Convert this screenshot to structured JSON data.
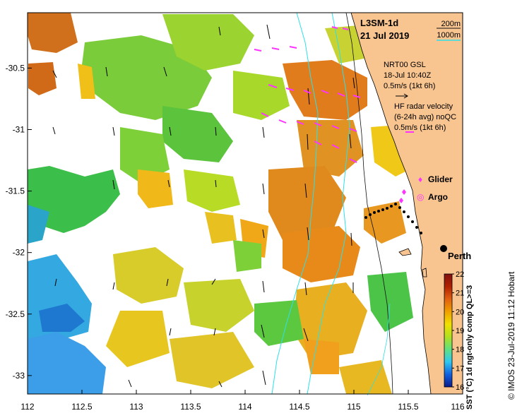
{
  "map": {
    "product_title": "L3SM-1d",
    "date": "21 Jul 2019",
    "isobath_labels": [
      "200m",
      "1000m"
    ],
    "isobath_colors": [
      "#111111",
      "#2ee0e8"
    ],
    "wind": {
      "label_line1": "NRT00 GSL",
      "label_line2": "18-Jul 10:40Z",
      "label_line3": "0.5m/s (1kt 6h)"
    },
    "radar": {
      "label_line1": "HF radar velocity",
      "label_line2": "(6-24h avg) noQC",
      "label_line3": "0.5m/s (1kt 6h)",
      "color": "#ff33ff"
    },
    "legend": {
      "glider_label": "Glider",
      "argo_label": "Argo",
      "glider_marker": "♦",
      "argo_marker": "◎",
      "color": "#ff33ff"
    },
    "city": {
      "name": "Perth",
      "lon": 115.86,
      "lat": -31.95
    },
    "land_color": "#f8c490",
    "credit": "© IMOS 23-Jul-2019 11:12 Hobart",
    "colorbar": {
      "label": "SST (°C) 1d ngt-only comp QL>=3",
      "ticks": [
        "22",
        "21",
        "20",
        "19",
        "18",
        "17",
        "16"
      ],
      "min": 16,
      "max": 22,
      "stops": [
        "#0a1a8a",
        "#1060e0",
        "#30c8f0",
        "#60e080",
        "#b0e020",
        "#f0e000",
        "#f0a000",
        "#e06010",
        "#b02000",
        "#801010"
      ]
    },
    "axes": {
      "x_ticks": [
        "112",
        "112.5",
        "113",
        "113.5",
        "114",
        "114.5",
        "115",
        "115.5",
        "116"
      ],
      "y_ticks": [
        "-30.5",
        "-31",
        "-31.5",
        "-32",
        "-32.5",
        "-33"
      ],
      "x_range": [
        112,
        116
      ],
      "y_range": [
        -33.15,
        -30.05
      ]
    }
  }
}
